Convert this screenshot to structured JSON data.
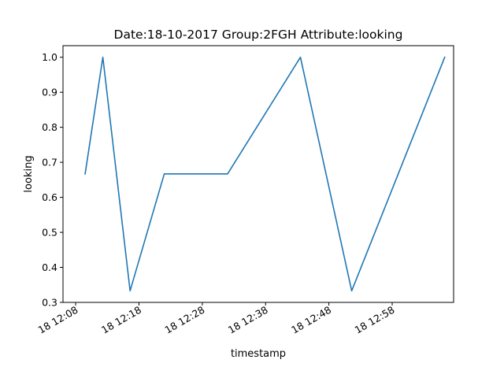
{
  "chart_data": {
    "type": "line",
    "title": "Date:18-10-2017  Group:2FGH Attribute:looking",
    "xlabel": "timestamp",
    "ylabel": "looking",
    "x_ticks": [
      "18 12:08",
      "18 12:18",
      "18 12:28",
      "18 12:38",
      "18 12:48",
      "18 12:58"
    ],
    "x_tick_minutes": [
      728,
      738,
      748,
      758,
      768,
      778
    ],
    "y_ticks": [
      "0.3",
      "0.4",
      "0.5",
      "0.6",
      "0.7",
      "0.8",
      "0.9",
      "1.0"
    ],
    "xlim_minutes": [
      726.0,
      787.7
    ],
    "ylim": [
      0.3,
      1.033
    ],
    "grid": false,
    "series": [
      {
        "color": "#1f77b4",
        "x_minutes": [
          729.5,
          732.3,
          736.6,
          742.0,
          752.0,
          763.5,
          771.6,
          786.3
        ],
        "values": [
          0.667,
          1.0,
          0.333,
          0.667,
          0.667,
          1.0,
          0.333,
          1.0
        ]
      }
    ]
  }
}
